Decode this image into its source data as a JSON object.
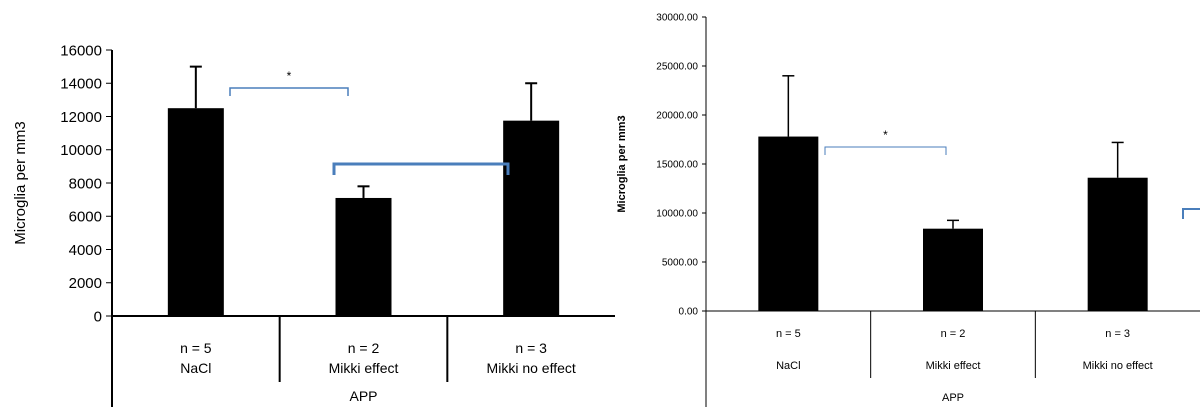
{
  "chart_data": [
    {
      "type": "bar",
      "ylabel": "Microglia per mm3",
      "ylim": [
        0,
        16000
      ],
      "yticks": [
        "0",
        "2000",
        "4000",
        "6000",
        "8000",
        "10000",
        "12000",
        "14000",
        "16000"
      ],
      "grid": false,
      "legend": "none",
      "categories": [
        "NaCl",
        "Mikki effect",
        "Mikki no effect"
      ],
      "n_labels": [
        "n = 5",
        "n = 2",
        "n = 3"
      ],
      "group_label": "APP",
      "values": [
        12500,
        7100,
        11750
      ],
      "errors": [
        2500,
        700,
        2250
      ],
      "significance": [
        {
          "from": "NaCl",
          "to": "Mikki effect",
          "label": "*"
        },
        {
          "from": "Mikki effect",
          "to": "Mikki no effect",
          "label": ""
        }
      ]
    },
    {
      "type": "bar",
      "ylabel": "Microglia per mm3",
      "ylim": [
        0,
        30000
      ],
      "yticks": [
        "0.00",
        "5000.00",
        "10000.00",
        "15000.00",
        "20000.00",
        "25000.00",
        "30000.00"
      ],
      "grid": false,
      "legend": "none",
      "categories": [
        "NaCl",
        "Mikki effect",
        "Mikki no effect"
      ],
      "n_labels": [
        "n = 5",
        "n = 2",
        "n = 3"
      ],
      "group_label": "APP",
      "values": [
        17800,
        8400,
        13600
      ],
      "errors": [
        6200,
        850,
        3600
      ],
      "significance": [
        {
          "from": "NaCl",
          "to": "Mikki effect",
          "label": "*"
        }
      ]
    }
  ],
  "colors": {
    "bar": "#000000",
    "bracket": "#4a7ebb",
    "axis": "#000000"
  }
}
